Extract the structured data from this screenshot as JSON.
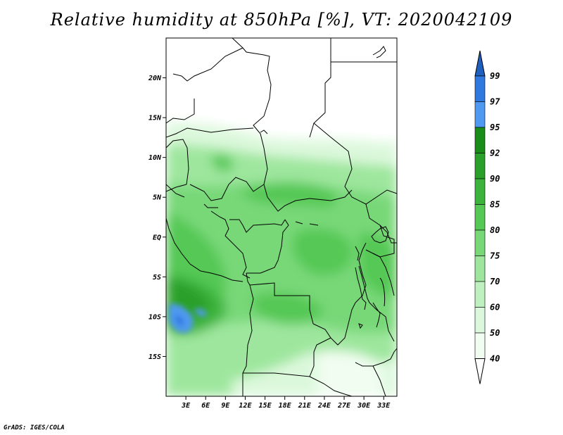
{
  "title": "Relative humidity at 850hPa [%], VT: 2020042109",
  "footer": "GrADS: IGES/COLA",
  "map": {
    "lat_labels": [
      "20N",
      "15N",
      "10N",
      "5N",
      "EQ",
      "5S",
      "10S",
      "15S"
    ],
    "lat_values": [
      20,
      15,
      10,
      5,
      0,
      -5,
      -10,
      -15
    ],
    "lon_labels": [
      "3E",
      "6E",
      "9E",
      "12E",
      "15E",
      "18E",
      "21E",
      "24E",
      "27E",
      "30E",
      "33E"
    ],
    "lon_values": [
      3,
      6,
      9,
      12,
      15,
      18,
      21,
      24,
      27,
      30,
      33
    ],
    "lon_range": [
      0,
      35
    ],
    "lat_range": [
      -20,
      25
    ]
  },
  "colorbar": {
    "levels": [
      "99",
      "97",
      "95",
      "92",
      "90",
      "85",
      "80",
      "75",
      "70",
      "60",
      "50",
      "40"
    ],
    "colors": {
      "above_99": "#1f5fbf",
      "97_99": "#2f78e0",
      "95_97": "#4f9af0",
      "92_95": "#1a8c1a",
      "90_92": "#2aa02a",
      "85_90": "#3cb43c",
      "80_85": "#55c855",
      "75_80": "#78d878",
      "70_75": "#9ee69e",
      "60_70": "#bff0bf",
      "50_60": "#dcf8dc",
      "40_50": "#f0fdf0",
      "below_40": "#ffffff"
    }
  }
}
